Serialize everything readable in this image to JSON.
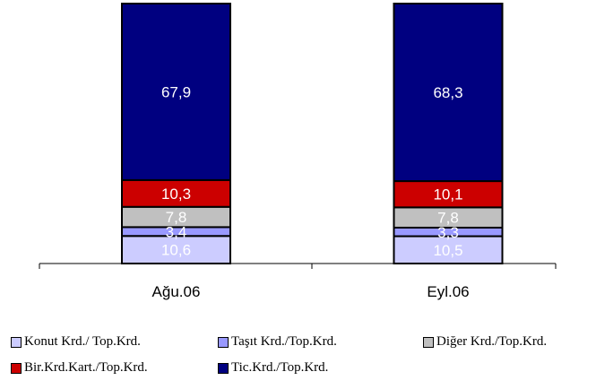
{
  "chart_data": {
    "type": "bar",
    "stacked": true,
    "categories": [
      "Ağu.06",
      "Eyl.06"
    ],
    "series": [
      {
        "name": "Konut Krd./ Top.Krd.",
        "color": "#ccccff",
        "values": [
          10.6,
          10.5
        ],
        "labels": [
          "10,6",
          "10,5"
        ]
      },
      {
        "name": "Taşıt Krd./Top.Krd.",
        "color": "#9999ff",
        "values": [
          3.4,
          3.3
        ],
        "labels": [
          "3,4",
          "3,3"
        ]
      },
      {
        "name": "Diğer Krd./Top.Krd.",
        "color": "#c0c0c0",
        "values": [
          7.8,
          7.8
        ],
        "labels": [
          "7,8",
          "7,8"
        ]
      },
      {
        "name": "Bir.Krd.Kart./Top.Krd.",
        "color": "#cc0000",
        "values": [
          10.3,
          10.1
        ],
        "labels": [
          "10,3",
          "10,1"
        ]
      },
      {
        "name": "Tic.Krd./Top.Krd.",
        "color": "#000080",
        "values": [
          67.9,
          68.3
        ],
        "labels": [
          "67,9",
          "68,3"
        ]
      }
    ],
    "ylim": [
      0,
      100
    ],
    "legend_position": "bottom"
  }
}
